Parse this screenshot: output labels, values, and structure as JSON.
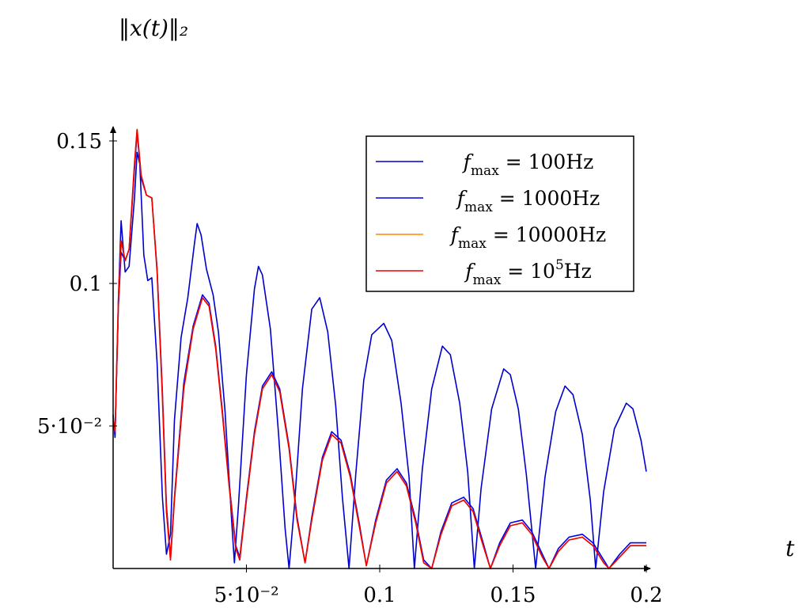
{
  "chart_data": {
    "type": "line",
    "ylabel": "‖x(t)‖₂",
    "xlabel": "t",
    "xlim": [
      0,
      0.2
    ],
    "ylim": [
      0,
      0.15
    ],
    "x_ticks": [
      {
        "value": 0.05,
        "label": "5·10⁻²"
      },
      {
        "value": 0.1,
        "label": "0.1"
      },
      {
        "value": 0.15,
        "label": "0.15"
      },
      {
        "value": 0.2,
        "label": "0.2"
      }
    ],
    "y_ticks": [
      {
        "value": 0.05,
        "label": "5·10⁻²"
      },
      {
        "value": 0.1,
        "label": "0.1"
      },
      {
        "value": 0.15,
        "label": "0.15"
      }
    ],
    "legend_position": "top-right",
    "series": [
      {
        "name": "f_max = 100Hz",
        "legend_main": "f",
        "legend_sub": "max",
        "legend_rest": " = 100Hz",
        "legend_sup": "",
        "legend_tail": "",
        "color": "#0000cc",
        "points": [
          [
            0,
            0.054
          ],
          [
            0.0007,
            0.046
          ],
          [
            0.002,
            0.095
          ],
          [
            0.003,
            0.122
          ],
          [
            0.0045,
            0.104
          ],
          [
            0.006,
            0.106
          ],
          [
            0.008,
            0.13
          ],
          [
            0.009,
            0.146
          ],
          [
            0.01,
            0.142
          ],
          [
            0.0115,
            0.11
          ],
          [
            0.013,
            0.101
          ],
          [
            0.0145,
            0.102
          ],
          [
            0.0165,
            0.072
          ],
          [
            0.0185,
            0.025
          ],
          [
            0.02,
            0.005
          ],
          [
            0.0215,
            0.012
          ],
          [
            0.023,
            0.052
          ],
          [
            0.0255,
            0.081
          ],
          [
            0.028,
            0.095
          ],
          [
            0.0305,
            0.114
          ],
          [
            0.0315,
            0.121
          ],
          [
            0.033,
            0.117
          ],
          [
            0.035,
            0.105
          ],
          [
            0.0375,
            0.096
          ],
          [
            0.0395,
            0.083
          ],
          [
            0.042,
            0.055
          ],
          [
            0.0445,
            0.016
          ],
          [
            0.0455,
            0.002
          ],
          [
            0.047,
            0.022
          ],
          [
            0.05,
            0.068
          ],
          [
            0.053,
            0.098
          ],
          [
            0.0545,
            0.106
          ],
          [
            0.056,
            0.103
          ],
          [
            0.059,
            0.084
          ],
          [
            0.062,
            0.048
          ],
          [
            0.0645,
            0.014
          ],
          [
            0.066,
            0.0
          ],
          [
            0.068,
            0.022
          ],
          [
            0.071,
            0.063
          ],
          [
            0.0745,
            0.091
          ],
          [
            0.0775,
            0.095
          ],
          [
            0.0805,
            0.083
          ],
          [
            0.0835,
            0.057
          ],
          [
            0.086,
            0.025
          ],
          [
            0.0885,
            0.0
          ],
          [
            0.091,
            0.033
          ],
          [
            0.094,
            0.066
          ],
          [
            0.097,
            0.082
          ],
          [
            0.1015,
            0.086
          ],
          [
            0.1045,
            0.08
          ],
          [
            0.108,
            0.058
          ],
          [
            0.111,
            0.032
          ],
          [
            0.113,
            0.0
          ],
          [
            0.116,
            0.035
          ],
          [
            0.1195,
            0.063
          ],
          [
            0.1235,
            0.078
          ],
          [
            0.1265,
            0.075
          ],
          [
            0.13,
            0.058
          ],
          [
            0.133,
            0.034
          ],
          [
            0.1355,
            0.0
          ],
          [
            0.138,
            0.028
          ],
          [
            0.142,
            0.056
          ],
          [
            0.1465,
            0.07
          ],
          [
            0.149,
            0.068
          ],
          [
            0.152,
            0.056
          ],
          [
            0.155,
            0.033
          ],
          [
            0.1585,
            0.0
          ],
          [
            0.162,
            0.032
          ],
          [
            0.166,
            0.055
          ],
          [
            0.1695,
            0.064
          ],
          [
            0.1725,
            0.061
          ],
          [
            0.176,
            0.047
          ],
          [
            0.179,
            0.024
          ],
          [
            0.181,
            0.0
          ],
          [
            0.184,
            0.027
          ],
          [
            0.188,
            0.049
          ],
          [
            0.1925,
            0.058
          ],
          [
            0.195,
            0.056
          ],
          [
            0.198,
            0.045
          ],
          [
            0.2,
            0.034
          ]
        ]
      },
      {
        "name": "f_max = 1000Hz",
        "legend_main": "f",
        "legend_sub": "max",
        "legend_rest": " = 1000Hz",
        "legend_sup": "",
        "legend_tail": "",
        "color": "#0000ee",
        "points": [
          [
            0,
            0.052
          ],
          [
            0.0007,
            0.047
          ],
          [
            0.002,
            0.092
          ],
          [
            0.003,
            0.111
          ],
          [
            0.0045,
            0.108
          ],
          [
            0.006,
            0.112
          ],
          [
            0.008,
            0.14
          ],
          [
            0.009,
            0.153
          ],
          [
            0.0105,
            0.137
          ],
          [
            0.0125,
            0.131
          ],
          [
            0.0145,
            0.13
          ],
          [
            0.0165,
            0.105
          ],
          [
            0.0185,
            0.062
          ],
          [
            0.02,
            0.022
          ],
          [
            0.0215,
            0.004
          ],
          [
            0.023,
            0.025
          ],
          [
            0.0265,
            0.065
          ],
          [
            0.03,
            0.085
          ],
          [
            0.0335,
            0.096
          ],
          [
            0.036,
            0.093
          ],
          [
            0.0385,
            0.078
          ],
          [
            0.041,
            0.055
          ],
          [
            0.0435,
            0.03
          ],
          [
            0.046,
            0.008
          ],
          [
            0.0475,
            0.004
          ],
          [
            0.05,
            0.025
          ],
          [
            0.053,
            0.048
          ],
          [
            0.056,
            0.064
          ],
          [
            0.0595,
            0.069
          ],
          [
            0.0625,
            0.063
          ],
          [
            0.066,
            0.043
          ],
          [
            0.069,
            0.018
          ],
          [
            0.072,
            0.002
          ],
          [
            0.0745,
            0.018
          ],
          [
            0.0785,
            0.039
          ],
          [
            0.082,
            0.048
          ],
          [
            0.0855,
            0.045
          ],
          [
            0.089,
            0.033
          ],
          [
            0.0925,
            0.015
          ],
          [
            0.095,
            0.001
          ],
          [
            0.0985,
            0.017
          ],
          [
            0.1025,
            0.031
          ],
          [
            0.1065,
            0.035
          ],
          [
            0.11,
            0.03
          ],
          [
            0.1135,
            0.017
          ],
          [
            0.1165,
            0.003
          ],
          [
            0.1195,
            0.0
          ],
          [
            0.123,
            0.013
          ],
          [
            0.127,
            0.023
          ],
          [
            0.1315,
            0.025
          ],
          [
            0.135,
            0.021
          ],
          [
            0.1385,
            0.01
          ],
          [
            0.1415,
            0.0
          ],
          [
            0.145,
            0.009
          ],
          [
            0.149,
            0.016
          ],
          [
            0.1535,
            0.017
          ],
          [
            0.157,
            0.013
          ],
          [
            0.161,
            0.005
          ],
          [
            0.1635,
            0.0
          ],
          [
            0.167,
            0.007
          ],
          [
            0.171,
            0.011
          ],
          [
            0.176,
            0.012
          ],
          [
            0.18,
            0.009
          ],
          [
            0.184,
            0.003
          ],
          [
            0.186,
            0.0
          ],
          [
            0.19,
            0.005
          ],
          [
            0.194,
            0.009
          ],
          [
            0.198,
            0.009
          ],
          [
            0.2,
            0.009
          ]
        ]
      },
      {
        "name": "f_max = 10000Hz",
        "legend_main": "f",
        "legend_sub": "max",
        "legend_rest": " = 10000Hz",
        "legend_sup": "",
        "legend_tail": "",
        "color": "#ff8c00",
        "points": [
          [
            0,
            0.053
          ],
          [
            0.0007,
            0.048
          ],
          [
            0.002,
            0.094
          ],
          [
            0.003,
            0.115
          ],
          [
            0.0045,
            0.108
          ],
          [
            0.006,
            0.112
          ],
          [
            0.008,
            0.142
          ],
          [
            0.009,
            0.154
          ],
          [
            0.0105,
            0.138
          ],
          [
            0.0125,
            0.131
          ],
          [
            0.0145,
            0.13
          ],
          [
            0.0165,
            0.104
          ],
          [
            0.0185,
            0.06
          ],
          [
            0.02,
            0.02
          ],
          [
            0.0215,
            0.003
          ],
          [
            0.023,
            0.024
          ],
          [
            0.0265,
            0.063
          ],
          [
            0.03,
            0.084
          ],
          [
            0.0335,
            0.095
          ],
          [
            0.036,
            0.092
          ],
          [
            0.0385,
            0.077
          ],
          [
            0.041,
            0.054
          ],
          [
            0.0435,
            0.029
          ],
          [
            0.046,
            0.007
          ],
          [
            0.0475,
            0.003
          ],
          [
            0.05,
            0.024
          ],
          [
            0.053,
            0.047
          ],
          [
            0.056,
            0.063
          ],
          [
            0.0595,
            0.068
          ],
          [
            0.0625,
            0.062
          ],
          [
            0.066,
            0.042
          ],
          [
            0.069,
            0.017
          ],
          [
            0.072,
            0.002
          ],
          [
            0.0745,
            0.017
          ],
          [
            0.0785,
            0.038
          ],
          [
            0.082,
            0.047
          ],
          [
            0.0855,
            0.044
          ],
          [
            0.089,
            0.032
          ],
          [
            0.0925,
            0.014
          ],
          [
            0.095,
            0.001
          ],
          [
            0.0985,
            0.016
          ],
          [
            0.1025,
            0.03
          ],
          [
            0.1065,
            0.034
          ],
          [
            0.11,
            0.029
          ],
          [
            0.1135,
            0.016
          ],
          [
            0.1165,
            0.002
          ],
          [
            0.1195,
            0.0
          ],
          [
            0.123,
            0.012
          ],
          [
            0.127,
            0.022
          ],
          [
            0.1315,
            0.024
          ],
          [
            0.135,
            0.02
          ],
          [
            0.1385,
            0.009
          ],
          [
            0.1415,
            0.0
          ],
          [
            0.145,
            0.008
          ],
          [
            0.149,
            0.015
          ],
          [
            0.1535,
            0.016
          ],
          [
            0.157,
            0.012
          ],
          [
            0.161,
            0.004
          ],
          [
            0.1635,
            0.0
          ],
          [
            0.167,
            0.006
          ],
          [
            0.171,
            0.01
          ],
          [
            0.176,
            0.011
          ],
          [
            0.18,
            0.008
          ],
          [
            0.184,
            0.002
          ],
          [
            0.186,
            0.0
          ],
          [
            0.19,
            0.004
          ],
          [
            0.194,
            0.008
          ],
          [
            0.198,
            0.008
          ],
          [
            0.2,
            0.008
          ]
        ]
      },
      {
        "name": "f_max = 10^5Hz",
        "legend_main": "f",
        "legend_sub": "max",
        "legend_rest": " = 10",
        "legend_sup": "5",
        "legend_tail": "Hz",
        "color": "#ee0000",
        "points": [
          [
            0,
            0.053
          ],
          [
            0.0007,
            0.048
          ],
          [
            0.002,
            0.094
          ],
          [
            0.003,
            0.115
          ],
          [
            0.0045,
            0.108
          ],
          [
            0.006,
            0.112
          ],
          [
            0.008,
            0.142
          ],
          [
            0.009,
            0.154
          ],
          [
            0.0105,
            0.138
          ],
          [
            0.0125,
            0.131
          ],
          [
            0.0145,
            0.13
          ],
          [
            0.0165,
            0.104
          ],
          [
            0.0185,
            0.06
          ],
          [
            0.02,
            0.02
          ],
          [
            0.0215,
            0.003
          ],
          [
            0.023,
            0.024
          ],
          [
            0.0265,
            0.063
          ],
          [
            0.03,
            0.084
          ],
          [
            0.0335,
            0.095
          ],
          [
            0.036,
            0.092
          ],
          [
            0.0385,
            0.077
          ],
          [
            0.041,
            0.054
          ],
          [
            0.0435,
            0.029
          ],
          [
            0.046,
            0.007
          ],
          [
            0.0475,
            0.003
          ],
          [
            0.05,
            0.024
          ],
          [
            0.053,
            0.047
          ],
          [
            0.056,
            0.063
          ],
          [
            0.0595,
            0.068
          ],
          [
            0.0625,
            0.062
          ],
          [
            0.066,
            0.042
          ],
          [
            0.069,
            0.017
          ],
          [
            0.072,
            0.002
          ],
          [
            0.0745,
            0.017
          ],
          [
            0.0785,
            0.038
          ],
          [
            0.082,
            0.047
          ],
          [
            0.0855,
            0.044
          ],
          [
            0.089,
            0.032
          ],
          [
            0.0925,
            0.014
          ],
          [
            0.095,
            0.001
          ],
          [
            0.0985,
            0.016
          ],
          [
            0.1025,
            0.03
          ],
          [
            0.1065,
            0.034
          ],
          [
            0.11,
            0.029
          ],
          [
            0.1135,
            0.016
          ],
          [
            0.1165,
            0.002
          ],
          [
            0.1195,
            0.0
          ],
          [
            0.123,
            0.012
          ],
          [
            0.127,
            0.022
          ],
          [
            0.1315,
            0.024
          ],
          [
            0.135,
            0.02
          ],
          [
            0.1385,
            0.009
          ],
          [
            0.1415,
            0.0
          ],
          [
            0.145,
            0.008
          ],
          [
            0.149,
            0.015
          ],
          [
            0.1535,
            0.016
          ],
          [
            0.157,
            0.012
          ],
          [
            0.161,
            0.004
          ],
          [
            0.1635,
            0.0
          ],
          [
            0.167,
            0.006
          ],
          [
            0.171,
            0.01
          ],
          [
            0.176,
            0.011
          ],
          [
            0.18,
            0.008
          ],
          [
            0.184,
            0.002
          ],
          [
            0.186,
            0.0
          ],
          [
            0.19,
            0.004
          ],
          [
            0.194,
            0.008
          ],
          [
            0.198,
            0.008
          ],
          [
            0.2,
            0.008
          ]
        ]
      }
    ]
  }
}
